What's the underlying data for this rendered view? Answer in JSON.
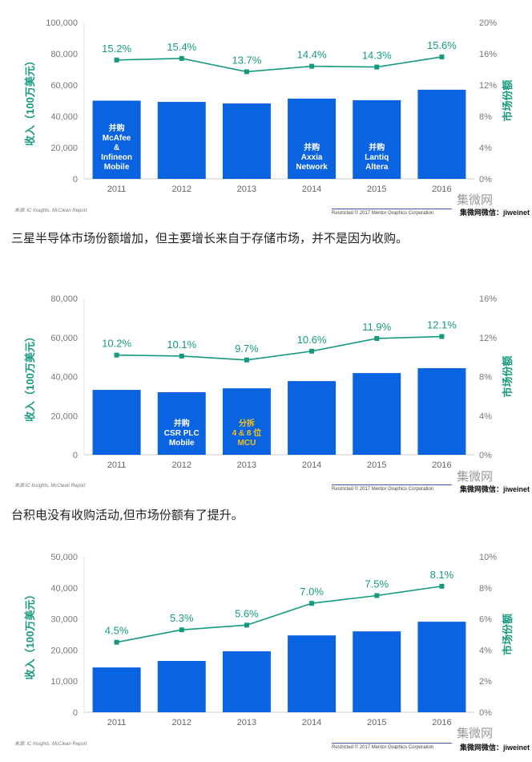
{
  "colors": {
    "bar": "#0a63e0",
    "line": "#159a80",
    "axis_text": "#777777",
    "title": "#169a7e"
  },
  "charts": [
    {
      "chart_data": {
        "type": "bar+line",
        "categories": [
          "2011",
          "2012",
          "2013",
          "2014",
          "2015",
          "2016"
        ],
        "series": [
          {
            "name": "收入（100万美元）",
            "axis": "left",
            "values": [
              50000,
              49200,
              48200,
              51300,
              50300,
              57000
            ]
          },
          {
            "name": "市场份额",
            "axis": "right",
            "values": [
              15.2,
              15.4,
              13.7,
              14.4,
              14.3,
              15.6
            ],
            "labels": [
              "15.2%",
              "15.4%",
              "13.7%",
              "14.4%",
              "14.3%",
              "15.6%"
            ]
          }
        ],
        "ylabel": "收入（100万美元）",
        "y2label": "市场份额",
        "ylim": [
          0,
          100000
        ],
        "y2lim": [
          0,
          20
        ],
        "yticks": [
          "0",
          "20,000",
          "40,000",
          "60,000",
          "80,000",
          "100,000"
        ],
        "y2ticks": [
          "0%",
          "4%",
          "8%",
          "12%",
          "16%",
          "20%"
        ],
        "annotations": [
          [
            "并购",
            "McAfee",
            "&",
            "Infineon",
            "Mobile"
          ],
          [],
          [],
          [
            "并购",
            "Axxia",
            "Network"
          ],
          [
            "并购",
            "Lantiq",
            "Altera"
          ],
          []
        ]
      },
      "source": "来源: IC Insights, McClean Report"
    },
    {
      "chart_data": {
        "type": "bar+line",
        "categories": [
          "2011",
          "2012",
          "2013",
          "2014",
          "2015",
          "2016"
        ],
        "series": [
          {
            "name": "收入（100万美元）",
            "axis": "left",
            "values": [
              33200,
              32000,
              34000,
              37700,
              41800,
              44300
            ]
          },
          {
            "name": "市场份额",
            "axis": "right",
            "values": [
              10.2,
              10.1,
              9.7,
              10.6,
              11.9,
              12.1
            ],
            "labels": [
              "10.2%",
              "10.1%",
              "9.7%",
              "10.6%",
              "11.9%",
              "12.1%"
            ]
          }
        ],
        "ylabel": "收入（100万美元）",
        "y2label": "市场份额",
        "ylim": [
          0,
          80000
        ],
        "y2lim": [
          0,
          16
        ],
        "yticks": [
          "0",
          "20,000",
          "40,000",
          "60,000",
          "80,000"
        ],
        "y2ticks": [
          "0%",
          "4%",
          "8%",
          "12%",
          "16%"
        ],
        "annotations": [
          [],
          [
            "并购",
            "CSR PLC",
            "Mobile"
          ],
          [
            "分拆",
            "4 & 8 位",
            "MCU"
          ],
          [],
          [],
          []
        ]
      },
      "source": "来源 IC Insights, McClean Report"
    },
    {
      "chart_data": {
        "type": "bar+line",
        "categories": [
          "2011",
          "2012",
          "2013",
          "2014",
          "2015",
          "2016"
        ],
        "series": [
          {
            "name": "收入（100万美元）",
            "axis": "left",
            "values": [
              14400,
              16500,
              19600,
              24700,
              26000,
              29100
            ]
          },
          {
            "name": "市场份额",
            "axis": "right",
            "values": [
              4.5,
              5.3,
              5.6,
              7.0,
              7.5,
              8.1
            ],
            "labels": [
              "4.5%",
              "5.3%",
              "5.6%",
              "7.0%",
              "7.5%",
              "8.1%"
            ]
          }
        ],
        "ylabel": "收入（100万美元）",
        "y2label": "市场份额",
        "ylim": [
          0,
          50000
        ],
        "y2lim": [
          0,
          10
        ],
        "yticks": [
          "0",
          "10,000",
          "20,000",
          "30,000",
          "40,000",
          "50,000"
        ],
        "y2ticks": [
          "0%",
          "2%",
          "4%",
          "6%",
          "8%",
          "10%"
        ],
        "annotations": [
          [],
          [],
          [],
          [],
          [],
          []
        ]
      },
      "source": "来源: IC Insights, McClean Report"
    }
  ],
  "footer": {
    "restricted": "Restricted © 2017 Mentor Graphics Corporation",
    "wechat": "集微网微信：jiweinet",
    "watermark": "集微网"
  },
  "captions": [
    "三星半导体市场份额增加，但主要增长来自于存储市场，并不是因为收购。",
    "台积电没有收购活动,但市场份额有了提升。"
  ]
}
